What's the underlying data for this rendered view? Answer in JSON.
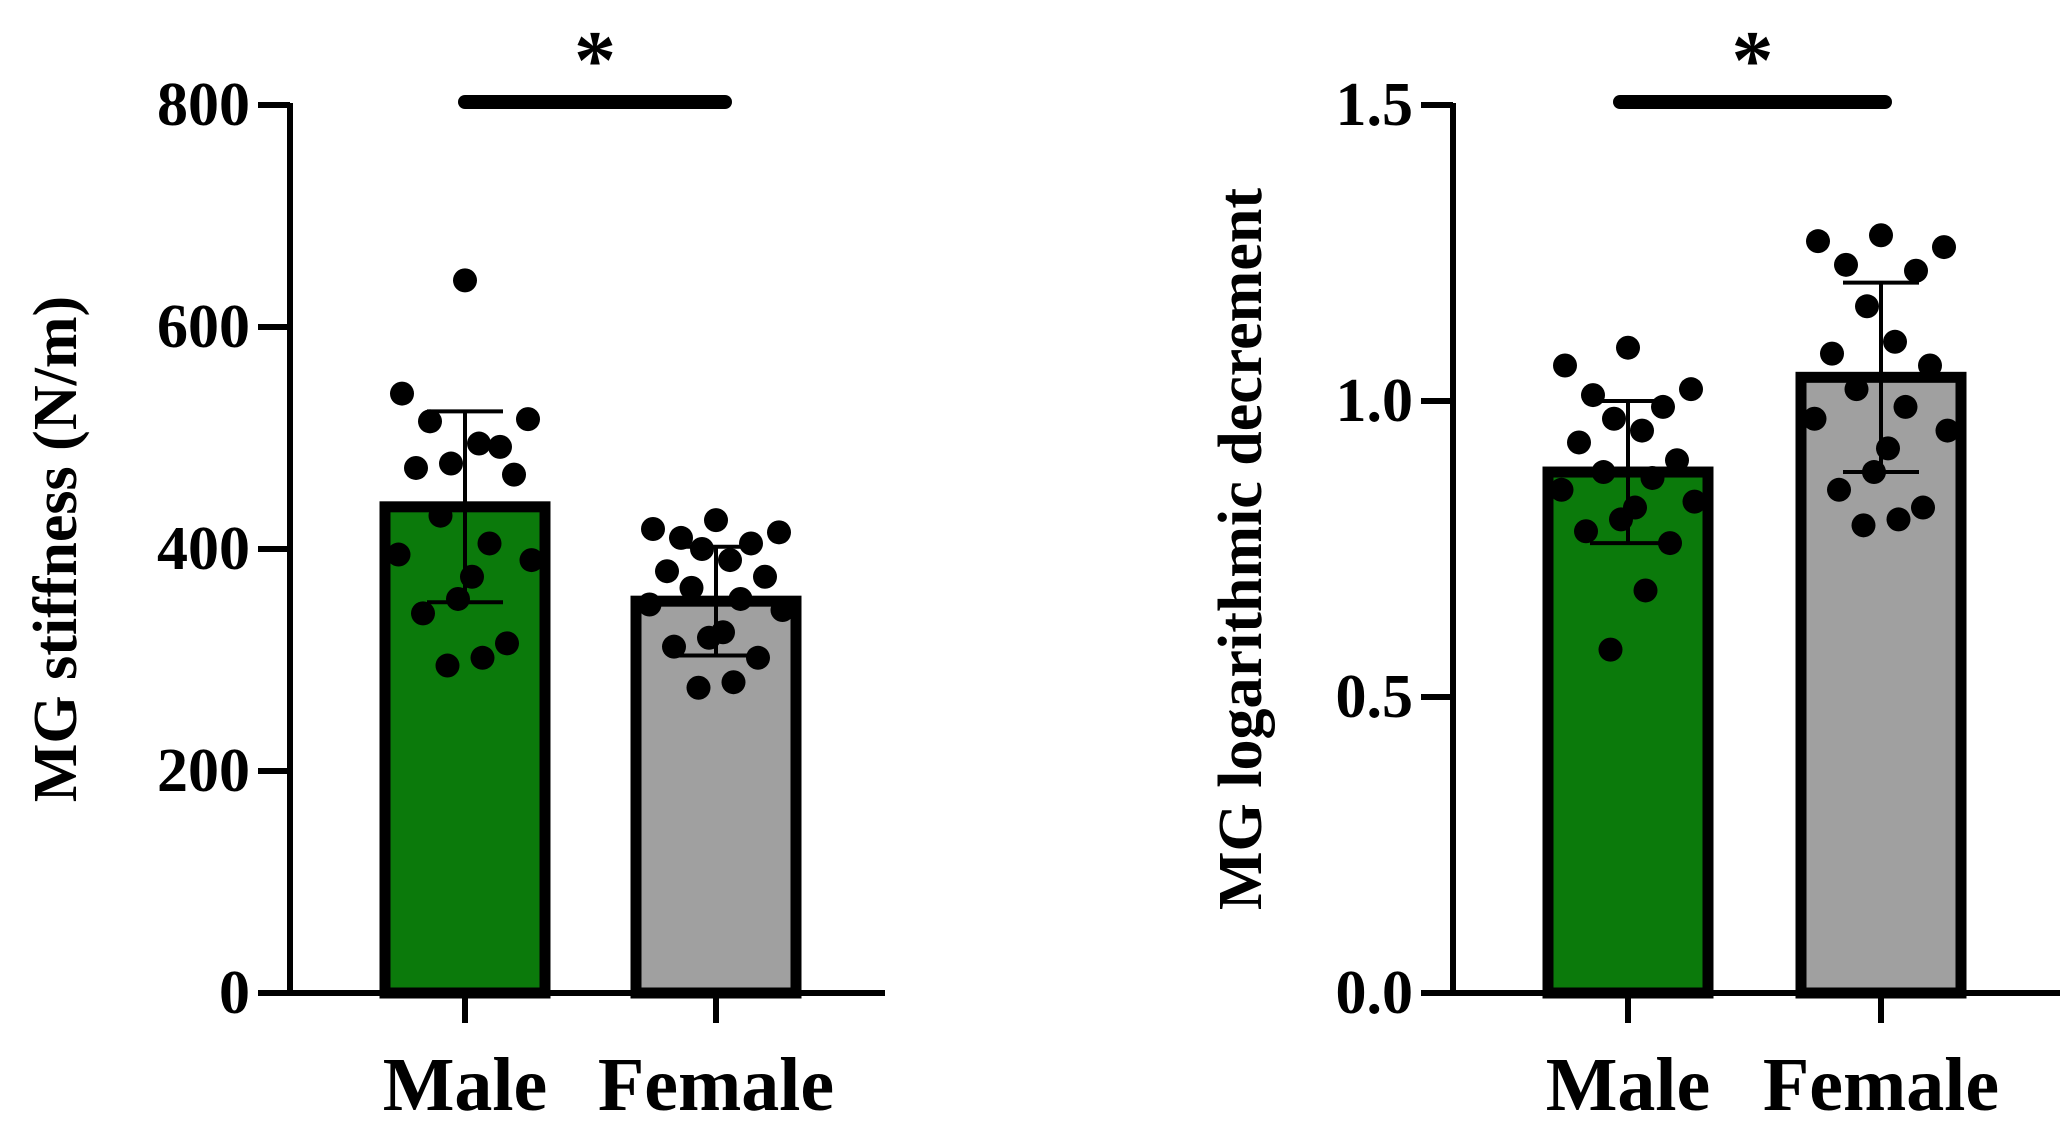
{
  "chart_data": [
    {
      "type": "bar",
      "ylabel": "MG stiffness (N/m)",
      "ylim": [
        0,
        800
      ],
      "yticks": [
        0,
        200,
        400,
        600,
        800
      ],
      "ytick_labels": [
        "0",
        "200",
        "400",
        "600",
        "800"
      ],
      "categories": [
        "Male",
        "Female"
      ],
      "values": [
        438,
        353
      ],
      "sd": [
        86,
        49
      ],
      "bar_colors": [
        "#0b7a0b",
        "#a0a0a0"
      ],
      "points": [
        [
          642,
          540,
          517,
          515,
          492,
          477,
          495,
          473,
          467,
          430,
          405,
          395,
          390,
          375,
          355,
          342,
          315,
          302,
          295
        ],
        [
          426,
          418,
          415,
          410,
          405,
          400,
          390,
          380,
          375,
          365,
          355,
          350,
          345,
          325,
          320,
          312,
          302,
          280,
          275
        ]
      ],
      "significance": "*"
    },
    {
      "type": "bar",
      "ylabel": "MG logarithmic decrement",
      "ylim": [
        0,
        1.5
      ],
      "yticks": [
        0,
        0.5,
        1.0,
        1.5
      ],
      "ytick_labels": [
        "0.0",
        "0.5",
        "1.0",
        "1.5"
      ],
      "categories": [
        "Male",
        "Female"
      ],
      "values": [
        0.88,
        1.04
      ],
      "sd": [
        0.12,
        0.16
      ],
      "bar_colors": [
        "#0b7a0b",
        "#a0a0a0"
      ],
      "points": [
        [
          1.09,
          1.06,
          1.02,
          1.01,
          0.99,
          0.97,
          0.95,
          0.93,
          0.9,
          0.88,
          0.87,
          0.85,
          0.83,
          0.82,
          0.8,
          0.78,
          0.76,
          0.68,
          0.58
        ],
        [
          1.28,
          1.27,
          1.26,
          1.23,
          1.22,
          1.16,
          1.1,
          1.08,
          1.06,
          1.02,
          0.99,
          0.97,
          0.95,
          0.92,
          0.88,
          0.85,
          0.82,
          0.8,
          0.79
        ]
      ],
      "significance": "*"
    }
  ]
}
